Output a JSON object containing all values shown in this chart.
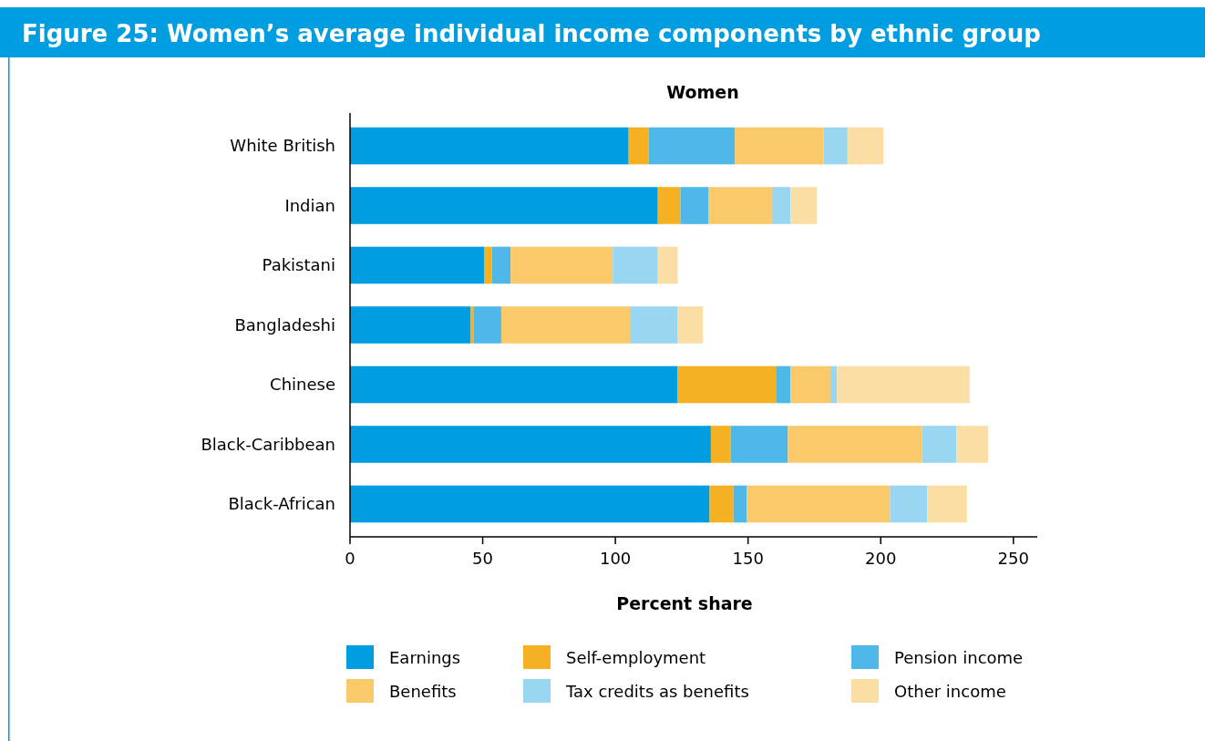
{
  "chart_data": {
    "type": "bar",
    "orientation": "horizontal",
    "stacked": true,
    "title": "Figure 25: Women’s average individual income components by ethnic group",
    "subtitle": "Women",
    "xlabel": "Percent share",
    "categories": [
      "White British",
      "Indian",
      "Pakistani",
      "Bangladeshi",
      "Chinese",
      "Black-Caribbean",
      "Black-African"
    ],
    "series": [
      {
        "name": "Earnings",
        "color": "#009ee0",
        "values": [
          105,
          116,
          50.5,
          45.5,
          123.5,
          136,
          135.5
        ]
      },
      {
        "name": "Self-employment",
        "color": "#f6b122",
        "values": [
          7.5,
          8.5,
          3,
          1,
          37,
          7.5,
          9
        ]
      },
      {
        "name": "Pension income",
        "color": "#4eb9e8",
        "values": [
          32.5,
          10.5,
          7,
          10.5,
          5.5,
          21.5,
          5
        ]
      },
      {
        "name": "Benefits",
        "color": "#f9c96a",
        "values": [
          33.5,
          24,
          38.5,
          48.5,
          15,
          50.5,
          54
        ]
      },
      {
        "name": "Tax credits as benefits",
        "color": "#99d6f2",
        "values": [
          9,
          7,
          17,
          18,
          2.5,
          13,
          14
        ]
      },
      {
        "name": "Other income",
        "color": "#fbdea4",
        "values": [
          13.5,
          10,
          7.5,
          9.5,
          50,
          12,
          15
        ]
      }
    ],
    "xlim": [
      0,
      259
    ],
    "xticks": [
      0,
      50,
      100,
      150,
      200,
      250
    ],
    "grid": false,
    "legend": "bottom"
  }
}
